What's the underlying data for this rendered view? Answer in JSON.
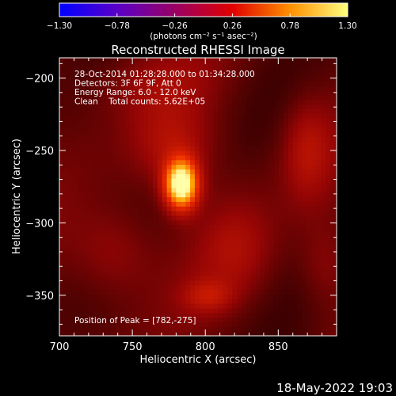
{
  "chart_data": {
    "type": "heatmap",
    "title": "Reconstructed RHESSI Image",
    "xlabel": "Heliocentric X (arcsec)",
    "ylabel": "Heliocentric Y (arcsec)",
    "xlim": [
      700,
      890
    ],
    "ylim": [
      -378,
      -186
    ],
    "xticks": [
      700,
      750,
      800,
      850
    ],
    "yticks": [
      -200,
      -250,
      -300,
      -350
    ],
    "colorbar": {
      "label": "(photons cm⁻² s⁻¹ asec⁻²)",
      "range": [
        -1.3,
        1.3
      ],
      "ticks": [
        "-1.30",
        "-0.78",
        "-0.26",
        "0.26",
        "0.78",
        "1.30"
      ],
      "colors": [
        "#0000ff",
        "#5a00c8",
        "#9a0064",
        "#e00000",
        "#ff9000",
        "#ffff80"
      ]
    },
    "annotations": [
      "28-Oct-2014 01:28:28.000 to 01:34:28.000",
      "Detectors: 3F 6F 9F, Att 0",
      "Energy Range: 6.0 - 12.0 keV",
      "Clean    Total counts: 5.62E+05"
    ],
    "peak_label": "Position of Peak = [782,-275]",
    "peak": {
      "x": 782,
      "y": -275,
      "value": 1.3
    },
    "sources": [
      {
        "x": 782,
        "y": -275,
        "sx": 8,
        "sy": 12,
        "value": 1.0
      },
      {
        "x": 776,
        "y": -248,
        "sx": 20,
        "sy": 20,
        "value": 0.2
      },
      {
        "x": 735,
        "y": -322,
        "sx": 20,
        "sy": 22,
        "value": 0.18
      },
      {
        "x": 820,
        "y": -320,
        "sx": 18,
        "sy": 25,
        "value": 0.16
      },
      {
        "x": 800,
        "y": -352,
        "sx": 12,
        "sy": 8,
        "value": 0.2
      },
      {
        "x": 868,
        "y": -250,
        "sx": 12,
        "sy": 25,
        "value": 0.22
      },
      {
        "x": 760,
        "y": -205,
        "sx": 28,
        "sy": 16,
        "value": 0.12
      },
      {
        "x": 880,
        "y": -330,
        "sx": 12,
        "sy": 20,
        "value": 0.12
      }
    ]
  },
  "footer_timestamp": "18-May-2022 19:03"
}
